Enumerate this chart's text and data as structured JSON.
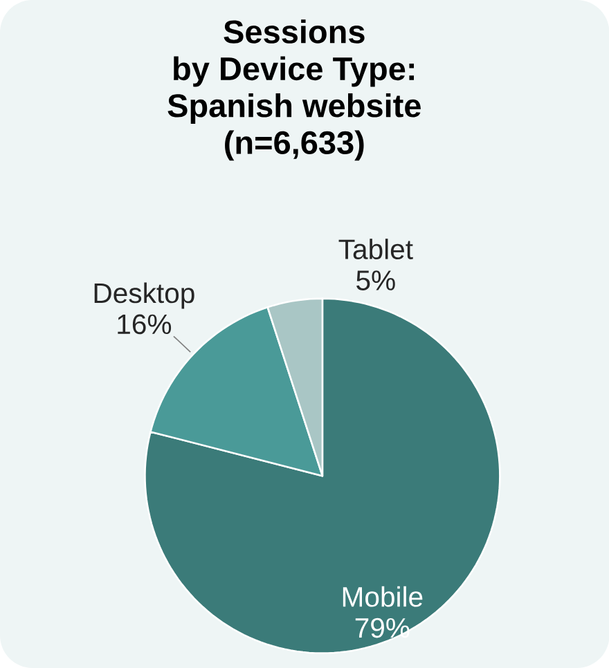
{
  "chart_data": {
    "type": "pie",
    "title": "Sessions\nby Device Type:\nSpanish website\n(n=6,633)",
    "categories": [
      "Mobile",
      "Desktop",
      "Tablet"
    ],
    "values": [
      79,
      16,
      5
    ],
    "colors": [
      "#3b7b79",
      "#4a9a98",
      "#a9c6c5"
    ],
    "value_labels": [
      "79%",
      "16%",
      "5%"
    ]
  }
}
